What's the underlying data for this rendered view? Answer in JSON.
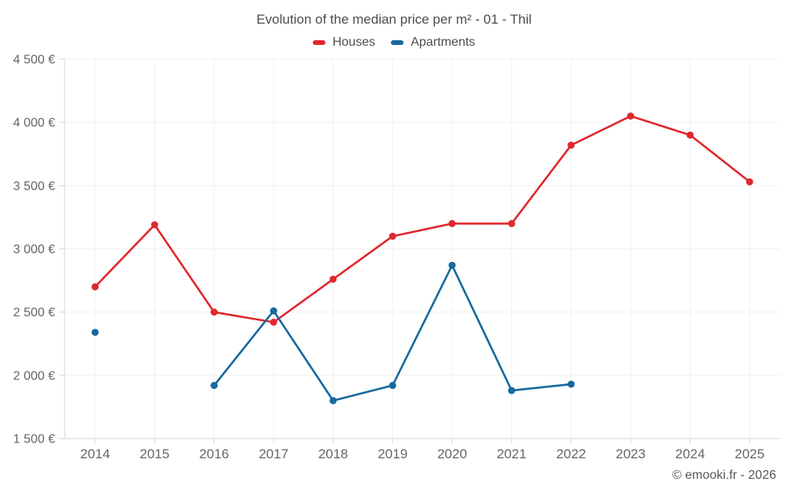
{
  "page": {
    "title": "Evolution of the median price per m² - 01 - Thil",
    "footer": "© emooki.fr - 2026"
  },
  "chart_data": {
    "type": "line",
    "title": "Evolution of the median price per m² - 01 - Thil",
    "categories": [
      "2014",
      "2015",
      "2016",
      "2017",
      "2018",
      "2019",
      "2020",
      "2021",
      "2022",
      "2023",
      "2024",
      "2025"
    ],
    "series": [
      {
        "name": "Houses",
        "color": "#e0282e",
        "values": [
          2700,
          3190,
          2500,
          2420,
          2760,
          3100,
          3200,
          3200,
          3820,
          4050,
          3900,
          3530
        ]
      },
      {
        "name": "Apartments",
        "color": "#16699f",
        "values": [
          2340,
          null,
          1920,
          2510,
          1800,
          1920,
          2870,
          1880,
          1930,
          null,
          null,
          null
        ]
      }
    ],
    "ylim": [
      1500,
      4500
    ],
    "y_ticks": {
      "values": [
        1500,
        2000,
        2500,
        3000,
        3500,
        4000,
        4500
      ],
      "labels": [
        "1 500 €",
        "2 000 €",
        "2 500 €",
        "3 000 €",
        "3 500 €",
        "4 000 €",
        "4 500 €"
      ]
    },
    "grid": true,
    "legend_position": "top",
    "xlabel": "",
    "ylabel": ""
  },
  "colors": {
    "grid": "#f1f1f1",
    "axis": "#d4d4d4",
    "tick_text": "#666666",
    "title_text": "#4d4d4d"
  }
}
